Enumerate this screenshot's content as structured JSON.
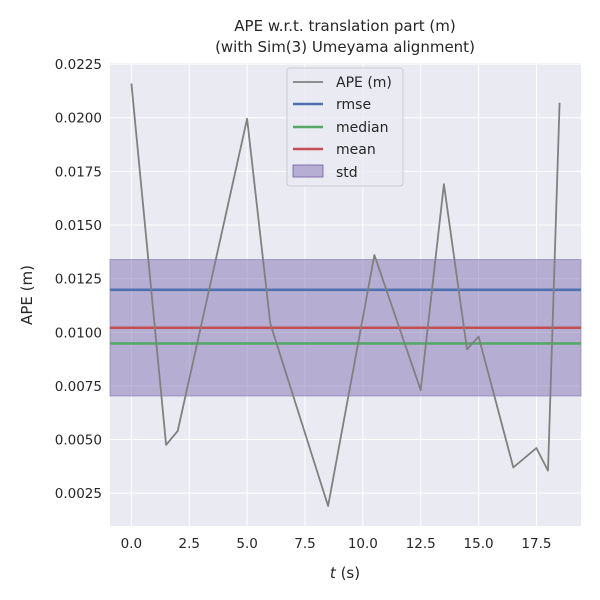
{
  "chart_data": {
    "type": "line",
    "title": "APE w.r.t. translation part (m)",
    "subtitle": "(with Sim(3) Umeyama alignment)",
    "xlabel_var": "t",
    "xlabel_unit": " (s)",
    "ylabel": "APE (m)",
    "xlim": [
      -0.925,
      19.425
    ],
    "ylim": [
      0.00097,
      0.02255
    ],
    "xticks": [
      0.0,
      2.5,
      5.0,
      7.5,
      10.0,
      12.5,
      15.0,
      17.5
    ],
    "xtick_labels": [
      "0.0",
      "2.5",
      "5.0",
      "7.5",
      "10.0",
      "12.5",
      "15.0",
      "17.5"
    ],
    "yticks": [
      0.0025,
      0.005,
      0.0075,
      0.01,
      0.0125,
      0.015,
      0.0175,
      0.02,
      0.0225
    ],
    "ytick_labels": [
      "0.0025",
      "0.0050",
      "0.0075",
      "0.0100",
      "0.0125",
      "0.0150",
      "0.0175",
      "0.0200",
      "0.0225"
    ],
    "grid": true,
    "legend_placement": "upper-center",
    "series": [
      {
        "name": "APE (m)",
        "color": "#808080",
        "x": [
          0.0,
          1.5,
          2.0,
          5.0,
          6.0,
          8.5,
          10.5,
          12.5,
          13.5,
          14.5,
          15.0,
          16.5,
          17.5,
          18.0,
          18.5
        ],
        "y": [
          0.0216,
          0.00475,
          0.0054,
          0.01995,
          0.0104,
          0.0019,
          0.0136,
          0.0073,
          0.0169,
          0.0092,
          0.0098,
          0.0037,
          0.0046,
          0.00355,
          0.0207
        ]
      }
    ],
    "stats": {
      "rmse": {
        "name": "rmse",
        "value": 0.01198,
        "color": "#4c72b0"
      },
      "median": {
        "name": "median",
        "value": 0.00948,
        "color": "#55a868"
      },
      "mean": {
        "name": "mean",
        "value": 0.01021,
        "color": "#c44e52"
      },
      "std": {
        "name": "std",
        "low": 0.00703,
        "high": 0.01339,
        "color": "#8172b2"
      }
    },
    "colors": {
      "background": "#eaeaf2",
      "grid": "#ffffff"
    }
  }
}
